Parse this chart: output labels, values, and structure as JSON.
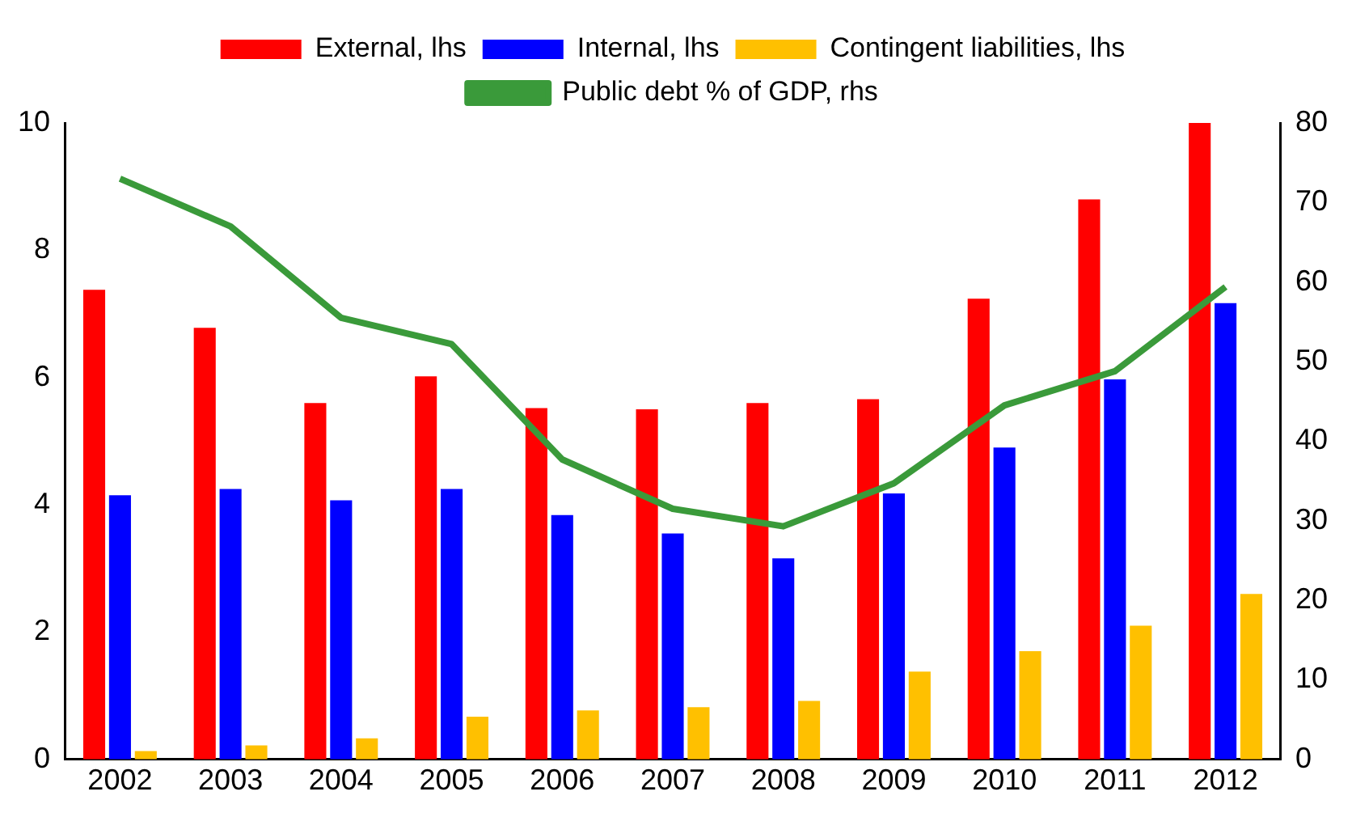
{
  "chart_data": {
    "type": "bar",
    "categories": [
      "2002",
      "2003",
      "2004",
      "2005",
      "2006",
      "2007",
      "2008",
      "2009",
      "2010",
      "2011",
      "2012"
    ],
    "series": [
      {
        "name": "External, lhs",
        "color": "#ff0000",
        "values": [
          7.38,
          6.78,
          5.6,
          6.02,
          5.52,
          5.5,
          5.6,
          5.66,
          7.24,
          8.8,
          10.0
        ]
      },
      {
        "name": "Internal, lhs",
        "color": "#0000ff",
        "values": [
          4.15,
          4.25,
          4.07,
          4.25,
          3.84,
          3.55,
          3.16,
          4.18,
          4.9,
          5.97,
          7.17
        ]
      },
      {
        "name": "Contingent liabilities, lhs",
        "color": "#ffc000",
        "values": [
          0.13,
          0.22,
          0.33,
          0.67,
          0.77,
          0.82,
          0.92,
          1.38,
          1.7,
          2.1,
          2.6
        ]
      },
      {
        "name": "Public debt % of GDP, rhs",
        "type": "line",
        "axis": "y2",
        "color": "#3a9a3a",
        "values": [
          73,
          67,
          55.5,
          52.2,
          37.7,
          31.5,
          29.3,
          34.7,
          44.5,
          48.8,
          59.4
        ]
      }
    ],
    "ylim": [
      0,
      10
    ],
    "yticks": [
      0,
      2,
      4,
      6,
      8,
      10
    ],
    "y2lim": [
      0,
      80
    ],
    "y2ticks": [
      0,
      10,
      20,
      30,
      40,
      50,
      60,
      70,
      80
    ],
    "grid": false,
    "legend": "top",
    "marker": "none",
    "line_style": "solid"
  }
}
